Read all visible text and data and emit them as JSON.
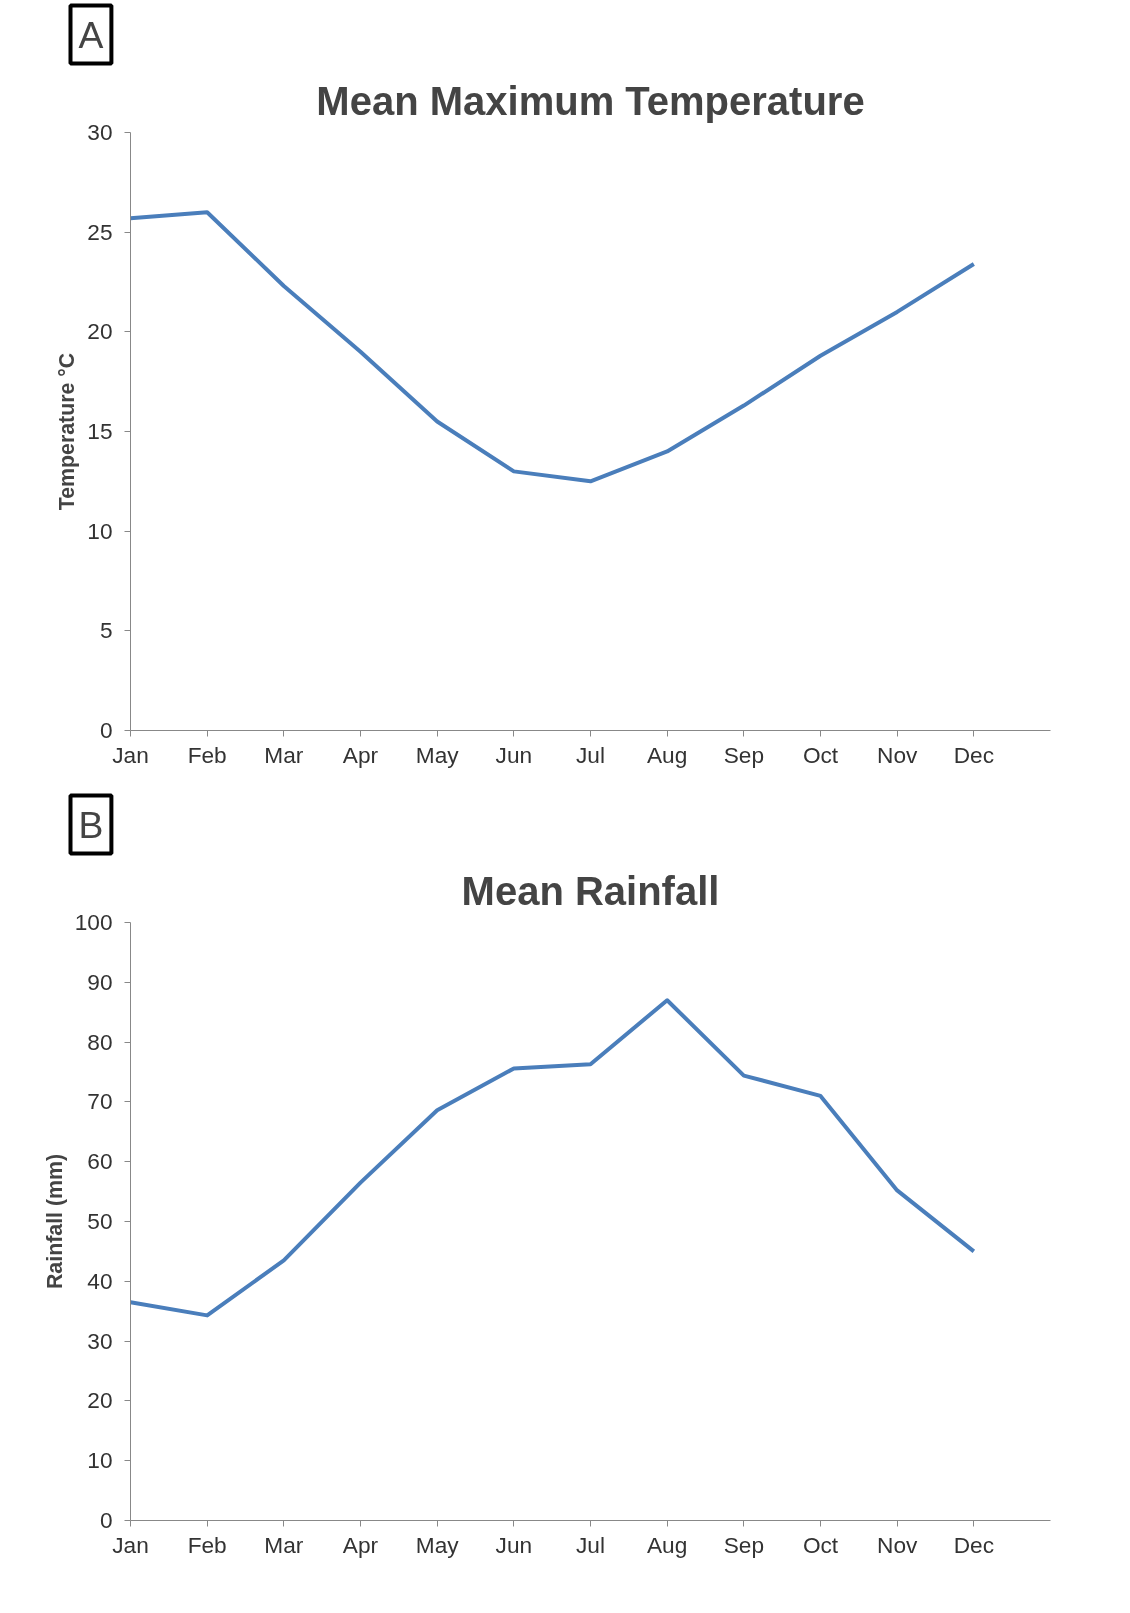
{
  "chart_data": [
    {
      "type": "line",
      "title": "Mean Maximum Temperature",
      "ylabel": "Temperature °C",
      "annotations": [
        "A"
      ],
      "categories": [
        "Jan",
        "Feb",
        "Mar",
        "Apr",
        "May",
        "Jun",
        "Jul",
        "Aug",
        "Sep",
        "Oct",
        "Nov",
        "Dec"
      ],
      "series": [
        {
          "color": "#4a7ebb",
          "values": [
            25.7,
            26.0,
            22.3,
            19.0,
            15.5,
            13.0,
            12.5,
            14.0,
            16.3,
            18.8,
            21.0,
            23.4
          ]
        }
      ],
      "ylim": [
        0,
        30
      ],
      "yticks": [
        0,
        5,
        10,
        15,
        20,
        25,
        30
      ],
      "grid": false,
      "marker": "none",
      "line_style": "solid"
    },
    {
      "type": "line",
      "title": "Mean Rainfall",
      "ylabel": "Rainfall (mm)",
      "annotations": [
        "B"
      ],
      "categories": [
        "Jan",
        "Feb",
        "Mar",
        "Apr",
        "May",
        "Jun",
        "Jul",
        "Aug",
        "Sep",
        "Oct",
        "Nov",
        "Dec"
      ],
      "series": [
        {
          "color": "#4a7ebb",
          "values": [
            36.5,
            34.3,
            43.5,
            56.5,
            68.6,
            75.6,
            76.3,
            87.0,
            74.4,
            71.0,
            55.2,
            45.0
          ]
        }
      ],
      "ylim": [
        0,
        100
      ],
      "yticks": [
        0,
        10,
        20,
        30,
        40,
        50,
        60,
        70,
        80,
        90,
        100
      ],
      "grid": false,
      "marker": "none",
      "line_style": "solid"
    }
  ]
}
